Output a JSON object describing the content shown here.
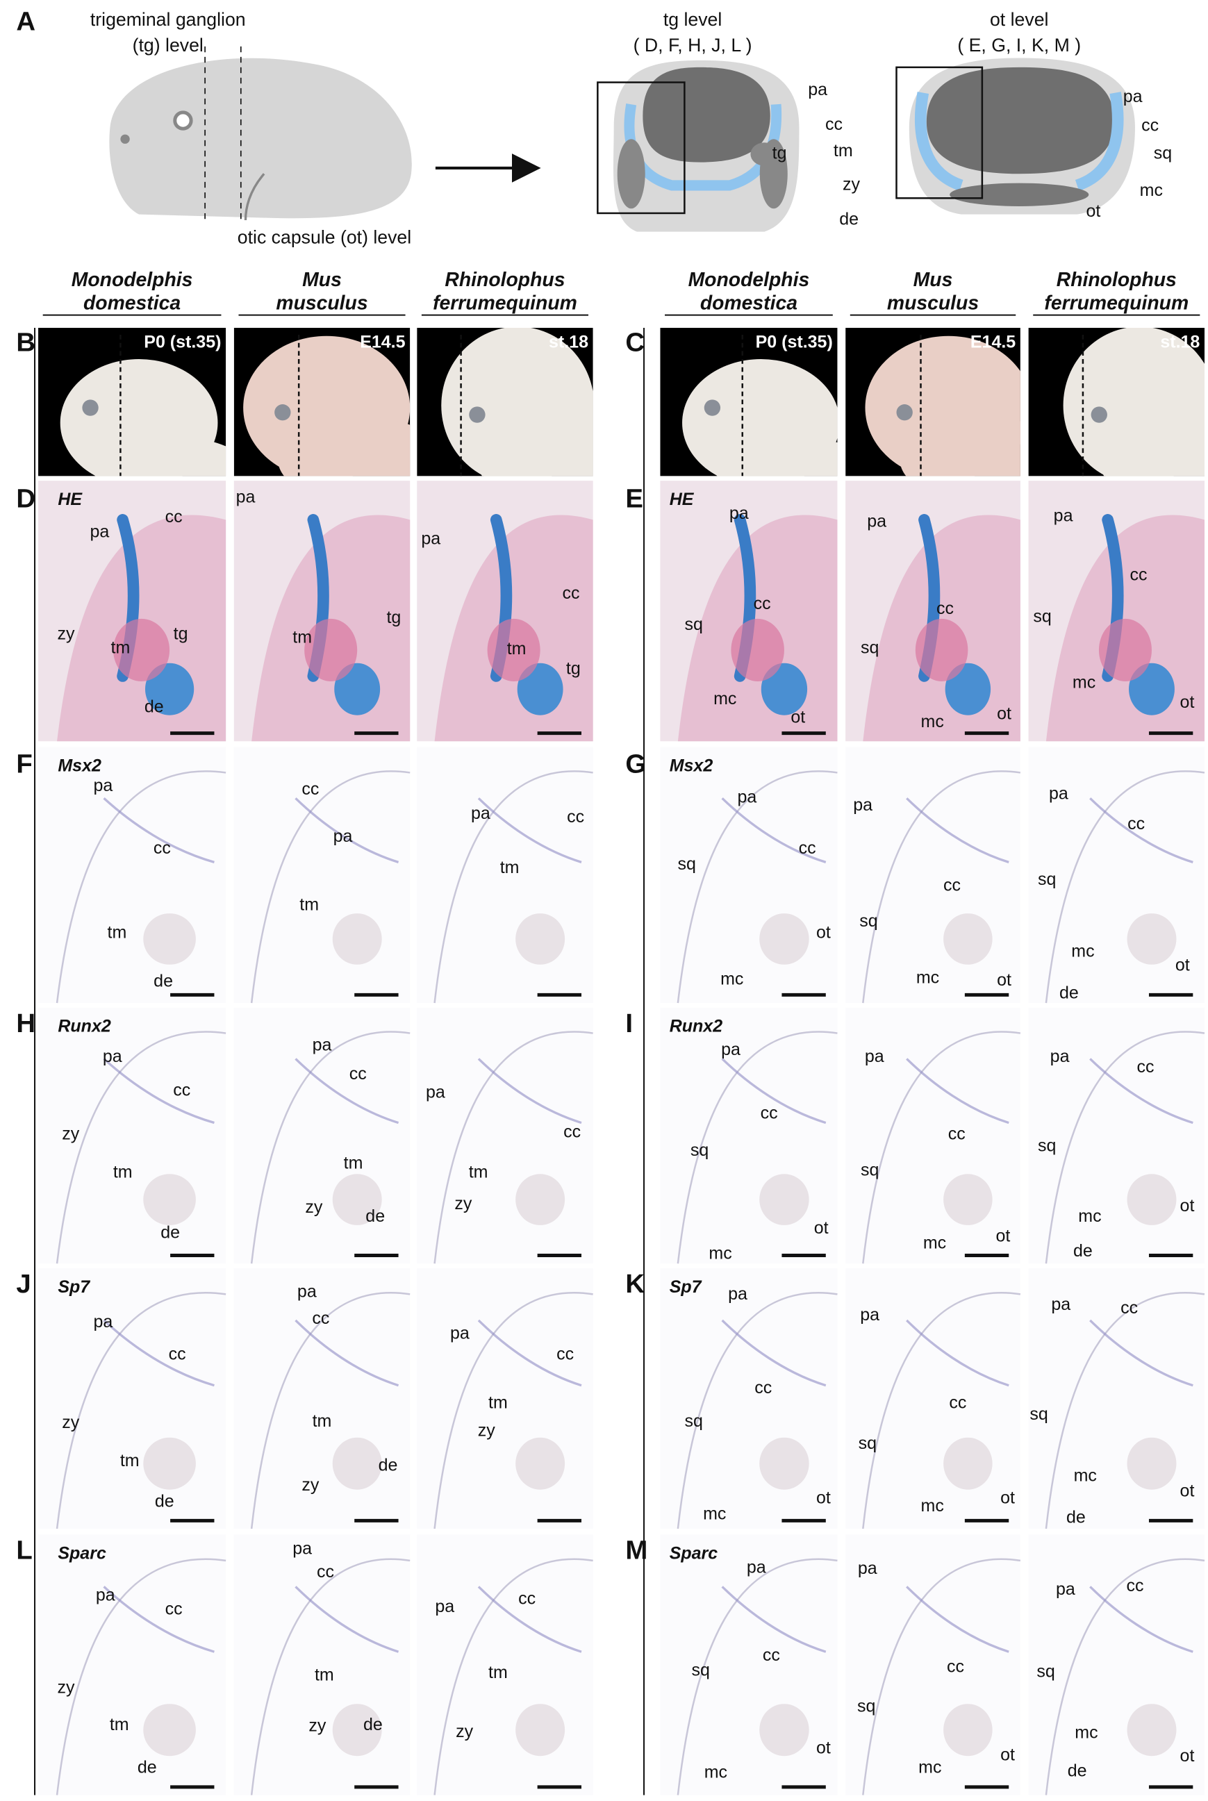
{
  "schematic": {
    "tg_caption": [
      "trigeminal ganglion",
      "(tg) level"
    ],
    "ot_caption": "otic capsule (ot) level",
    "tg_title": "tg level",
    "tg_panels": "( D, F, H, J, L )",
    "ot_title": "ot level",
    "ot_panels": "( E, G, I, K, M )",
    "tg_labels": [
      "pa",
      "cc",
      "tg",
      "tm",
      "zy",
      "de"
    ],
    "ot_labels": [
      "pa",
      "cc",
      "sq",
      "mc",
      "ot"
    ]
  },
  "letters": [
    "A",
    "B",
    "C",
    "D",
    "E",
    "F",
    "G",
    "H",
    "I",
    "J",
    "K",
    "L",
    "M"
  ],
  "species": [
    {
      "genus": "Monodelphis",
      "species": "domestica"
    },
    {
      "genus": "Mus",
      "species": "musculus"
    },
    {
      "genus": "Rhinolophus",
      "species": "ferrumequinum"
    }
  ],
  "stages": [
    "P0 (st.35)",
    "E14.5",
    "st.18"
  ],
  "rows": [
    {
      "stain": "HE",
      "panels": [
        [
          "pa",
          "cc",
          "zy",
          "tm",
          "tg",
          "de"
        ],
        [
          "pa",
          "tg",
          "tm"
        ],
        [
          "pa",
          "cc",
          "tm",
          "tg"
        ],
        [
          "pa",
          "cc",
          "sq",
          "mc",
          "ot"
        ],
        [
          "pa",
          "cc",
          "sq",
          "mc",
          "ot"
        ],
        [
          "pa",
          "cc",
          "sq",
          "mc",
          "ot"
        ]
      ]
    },
    {
      "stain": "Msx2",
      "panels": [
        [
          "pa",
          "cc",
          "tm",
          "de"
        ],
        [
          "cc",
          "pa",
          "tm"
        ],
        [
          "pa",
          "cc",
          "tm"
        ],
        [
          "pa",
          "cc",
          "sq",
          "ot",
          "mc"
        ],
        [
          "pa",
          "cc",
          "sq",
          "mc",
          "ot"
        ],
        [
          "pa",
          "cc",
          "sq",
          "mc",
          "ot",
          "de"
        ]
      ]
    },
    {
      "stain": "Runx2",
      "panels": [
        [
          "pa",
          "cc",
          "zy",
          "tm",
          "de"
        ],
        [
          "pa",
          "cc",
          "tm",
          "zy",
          "de"
        ],
        [
          "pa",
          "cc",
          "tm",
          "zy"
        ],
        [
          "pa",
          "cc",
          "sq",
          "ot",
          "mc"
        ],
        [
          "pa",
          "cc",
          "sq",
          "mc",
          "ot"
        ],
        [
          "pa",
          "cc",
          "sq",
          "mc",
          "ot",
          "de"
        ]
      ]
    },
    {
      "stain": "Sp7",
      "panels": [
        [
          "pa",
          "cc",
          "zy",
          "tm",
          "de"
        ],
        [
          "pa",
          "cc",
          "tm",
          "zy",
          "de"
        ],
        [
          "pa",
          "cc",
          "tm",
          "zy"
        ],
        [
          "pa",
          "cc",
          "sq",
          "ot",
          "mc"
        ],
        [
          "pa",
          "cc",
          "sq",
          "mc",
          "ot"
        ],
        [
          "pa",
          "cc",
          "sq",
          "mc",
          "ot",
          "de"
        ]
      ]
    },
    {
      "stain": "Sparc",
      "panels": [
        [
          "pa",
          "cc",
          "zy",
          "tm",
          "de"
        ],
        [
          "pa",
          "cc",
          "tm",
          "zy",
          "de"
        ],
        [
          "pa",
          "cc",
          "tm",
          "zy"
        ],
        [
          "pa",
          "cc",
          "sq",
          "ot",
          "mc"
        ],
        [
          "pa",
          "cc",
          "sq",
          "mc",
          "ot"
        ],
        [
          "pa",
          "cc",
          "sq",
          "mc",
          "ot",
          "de"
        ]
      ]
    }
  ]
}
